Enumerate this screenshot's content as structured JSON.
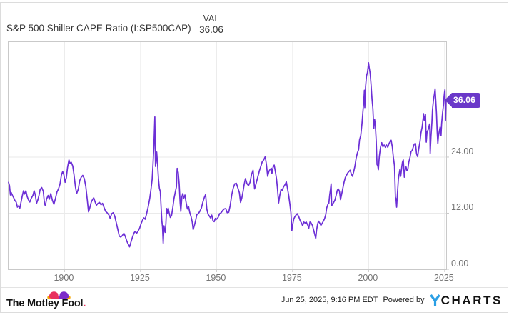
{
  "header": {
    "title": "S&P 500 Shiller CAPE Ratio (I:SP500CAP)",
    "val_label": "VAL",
    "val_value": "36.06"
  },
  "colors": {
    "line": "#6C2FD6",
    "tag_bg": "#6A38C9",
    "tag_text": "#FFFFFF",
    "grid": "#EAEAEA",
    "axis_border": "#C9C9C9",
    "tick_text": "#757575",
    "brand_pink": "#E8315E",
    "brand_purple": "#7D2BC9",
    "brand_gold": "#F7A600",
    "ycharts_blue": "#2A9FE5"
  },
  "footer": {
    "brand": "The Motley Fool",
    "brand_dot": ".",
    "timestamp": "Jun 25, 2025, 9:16 PM EDT",
    "powered_by": "Powered by",
    "provider_mark": "Y",
    "provider_name": "CHARTS"
  },
  "chart_data": {
    "type": "line",
    "title": "S&P 500 Shiller CAPE Ratio (I:SP500CAP)",
    "series_name": "S&P 500 Shiller CAPE Ratio",
    "xlabel": "",
    "ylabel": "",
    "legend": "none",
    "grid": true,
    "y_axis_side": "right",
    "x_domain": [
      1881.6,
      2025.5
    ],
    "y_domain": [
      0,
      48.6
    ],
    "x_ticks": [
      1900,
      1925,
      1950,
      1975,
      2000,
      2025
    ],
    "x_tick_labels": [
      "1900",
      "1925",
      "1950",
      "1975",
      "2000",
      "2025"
    ],
    "y_gridlines": [
      12,
      24,
      36
    ],
    "y_ticks_labeled": [
      {
        "v": 0,
        "label": "0.00"
      },
      {
        "v": 12,
        "label": "12.00"
      },
      {
        "v": 24,
        "label": "24.00"
      }
    ],
    "last_value": 36.06,
    "last_label": "36.06",
    "points": [
      [
        1881.6,
        18.6
      ],
      [
        1881.9,
        17.9
      ],
      [
        1882.2,
        15.9
      ],
      [
        1882.5,
        16.4
      ],
      [
        1882.9,
        15.8
      ],
      [
        1883.3,
        15.3
      ],
      [
        1883.7,
        14.7
      ],
      [
        1884.1,
        14.4
      ],
      [
        1884.5,
        13.3
      ],
      [
        1884.9,
        13.6
      ],
      [
        1885.3,
        13.1
      ],
      [
        1885.7,
        14.4
      ],
      [
        1886.1,
        15.7
      ],
      [
        1886.5,
        16.8
      ],
      [
        1886.9,
        16.1
      ],
      [
        1887.3,
        16.8
      ],
      [
        1887.7,
        15.6
      ],
      [
        1888.1,
        14.9
      ],
      [
        1888.6,
        14.4
      ],
      [
        1889.1,
        15.2
      ],
      [
        1889.6,
        15.8
      ],
      [
        1890.0,
        16.8
      ],
      [
        1890.4,
        15.9
      ],
      [
        1890.8,
        14.1
      ],
      [
        1891.2,
        14.8
      ],
      [
        1891.6,
        15.8
      ],
      [
        1892.0,
        17.1
      ],
      [
        1892.5,
        17.5
      ],
      [
        1893.0,
        16.7
      ],
      [
        1893.4,
        14.1
      ],
      [
        1893.7,
        13.6
      ],
      [
        1894.1,
        15.0
      ],
      [
        1894.6,
        15.8
      ],
      [
        1895.0,
        15.0
      ],
      [
        1895.5,
        16.2
      ],
      [
        1896.0,
        14.8
      ],
      [
        1896.5,
        13.9
      ],
      [
        1897.0,
        15.1
      ],
      [
        1897.5,
        16.5
      ],
      [
        1898.0,
        17.2
      ],
      [
        1898.5,
        18.2
      ],
      [
        1899.0,
        20.2
      ],
      [
        1899.4,
        20.9
      ],
      [
        1899.8,
        20.2
      ],
      [
        1900.2,
        18.6
      ],
      [
        1900.6,
        19.6
      ],
      [
        1901.0,
        21.8
      ],
      [
        1901.45,
        23.4
      ],
      [
        1901.8,
        22.6
      ],
      [
        1902.2,
        22.9
      ],
      [
        1902.7,
        22.1
      ],
      [
        1903.1,
        20.3
      ],
      [
        1903.6,
        17.6
      ],
      [
        1904.0,
        16.2
      ],
      [
        1904.5,
        17.1
      ],
      [
        1905.0,
        19.0
      ],
      [
        1905.5,
        19.7
      ],
      [
        1906.0,
        20.1
      ],
      [
        1906.5,
        19.4
      ],
      [
        1907.0,
        17.7
      ],
      [
        1907.5,
        14.8
      ],
      [
        1907.9,
        12.3
      ],
      [
        1908.3,
        13.1
      ],
      [
        1908.8,
        14.4
      ],
      [
        1909.2,
        14.9
      ],
      [
        1909.6,
        15.3
      ],
      [
        1910.0,
        14.5
      ],
      [
        1910.5,
        13.7
      ],
      [
        1911.0,
        14.1
      ],
      [
        1911.5,
        14.3
      ],
      [
        1912.0,
        13.8
      ],
      [
        1912.5,
        14.1
      ],
      [
        1913.0,
        13.2
      ],
      [
        1913.5,
        12.4
      ],
      [
        1914.0,
        12.1
      ],
      [
        1914.6,
        11.6
      ],
      [
        1915.0,
        10.9
      ],
      [
        1915.5,
        11.9
      ],
      [
        1916.0,
        12.1
      ],
      [
        1916.5,
        11.4
      ],
      [
        1917.0,
        10.0
      ],
      [
        1917.5,
        8.6
      ],
      [
        1918.0,
        7.1
      ],
      [
        1918.5,
        6.9
      ],
      [
        1919.0,
        7.2
      ],
      [
        1919.5,
        7.7
      ],
      [
        1920.0,
        7.0
      ],
      [
        1920.5,
        6.0
      ],
      [
        1921.0,
        5.3
      ],
      [
        1921.4,
        4.8
      ],
      [
        1921.8,
        5.7
      ],
      [
        1922.3,
        6.8
      ],
      [
        1922.8,
        7.7
      ],
      [
        1923.2,
        8.1
      ],
      [
        1923.7,
        7.7
      ],
      [
        1924.2,
        8.2
      ],
      [
        1924.7,
        8.8
      ],
      [
        1925.2,
        9.8
      ],
      [
        1925.7,
        10.6
      ],
      [
        1926.1,
        11.0
      ],
      [
        1926.5,
        10.7
      ],
      [
        1927.0,
        11.9
      ],
      [
        1927.5,
        13.3
      ],
      [
        1928.0,
        15.1
      ],
      [
        1928.4,
        17.0
      ],
      [
        1928.8,
        19.2
      ],
      [
        1929.1,
        22.4
      ],
      [
        1929.4,
        26.5
      ],
      [
        1929.7,
        32.6
      ],
      [
        1929.9,
        22.0
      ],
      [
        1930.1,
        22.9
      ],
      [
        1930.3,
        25.1
      ],
      [
        1930.6,
        22.6
      ],
      [
        1930.9,
        19.3
      ],
      [
        1931.2,
        17.3
      ],
      [
        1931.5,
        16.6
      ],
      [
        1931.8,
        12.9
      ],
      [
        1932.0,
        10.4
      ],
      [
        1932.2,
        9.1
      ],
      [
        1932.45,
        5.6
      ],
      [
        1932.7,
        9.3
      ],
      [
        1932.9,
        8.4
      ],
      [
        1933.1,
        7.9
      ],
      [
        1933.35,
        9.8
      ],
      [
        1933.55,
        13.0
      ],
      [
        1933.8,
        12.0
      ],
      [
        1934.1,
        13.1
      ],
      [
        1934.4,
        12.1
      ],
      [
        1934.8,
        11.1
      ],
      [
        1935.2,
        11.5
      ],
      [
        1935.6,
        13.1
      ],
      [
        1936.0,
        15.1
      ],
      [
        1936.4,
        16.4
      ],
      [
        1936.8,
        17.6
      ],
      [
        1937.05,
        21.6
      ],
      [
        1937.4,
        20.7
      ],
      [
        1937.7,
        18.3
      ],
      [
        1938.0,
        14.3
      ],
      [
        1938.25,
        12.4
      ],
      [
        1938.6,
        15.5
      ],
      [
        1938.9,
        16.2
      ],
      [
        1939.2,
        15.2
      ],
      [
        1939.6,
        15.9
      ],
      [
        1940.0,
        14.2
      ],
      [
        1940.4,
        12.9
      ],
      [
        1940.8,
        13.4
      ],
      [
        1941.2,
        12.1
      ],
      [
        1941.6,
        11.3
      ],
      [
        1942.0,
        10.1
      ],
      [
        1942.3,
        8.5
      ],
      [
        1942.7,
        9.4
      ],
      [
        1943.1,
        10.4
      ],
      [
        1943.5,
        11.7
      ],
      [
        1944.0,
        11.9
      ],
      [
        1944.5,
        12.4
      ],
      [
        1945.0,
        13.1
      ],
      [
        1945.5,
        14.4
      ],
      [
        1946.0,
        15.4
      ],
      [
        1946.4,
        16.0
      ],
      [
        1946.8,
        12.9
      ],
      [
        1947.2,
        11.8
      ],
      [
        1947.6,
        11.4
      ],
      [
        1948.0,
        11.0
      ],
      [
        1948.4,
        11.6
      ],
      [
        1948.8,
        10.4
      ],
      [
        1949.2,
        10.2
      ],
      [
        1949.6,
        10.9
      ],
      [
        1950.0,
        10.7
      ],
      [
        1950.5,
        11.1
      ],
      [
        1951.0,
        11.9
      ],
      [
        1951.5,
        12.1
      ],
      [
        1952.0,
        12.6
      ],
      [
        1952.5,
        12.9
      ],
      [
        1953.0,
        13.0
      ],
      [
        1953.5,
        12.1
      ],
      [
        1954.0,
        12.2
      ],
      [
        1954.5,
        13.7
      ],
      [
        1955.0,
        16.0
      ],
      [
        1955.5,
        17.4
      ],
      [
        1956.0,
        18.3
      ],
      [
        1956.5,
        18.4
      ],
      [
        1957.0,
        17.4
      ],
      [
        1957.5,
        16.4
      ],
      [
        1957.9,
        14.3
      ],
      [
        1958.3,
        15.2
      ],
      [
        1958.7,
        16.6
      ],
      [
        1959.1,
        18.2
      ],
      [
        1959.5,
        19.4
      ],
      [
        1960.0,
        18.3
      ],
      [
        1960.5,
        17.9
      ],
      [
        1961.0,
        18.6
      ],
      [
        1961.5,
        20.3
      ],
      [
        1962.0,
        21.2
      ],
      [
        1962.5,
        17.2
      ],
      [
        1962.9,
        18.1
      ],
      [
        1963.3,
        19.1
      ],
      [
        1963.7,
        20.1
      ],
      [
        1964.1,
        21.1
      ],
      [
        1964.5,
        21.9
      ],
      [
        1965.0,
        23.0
      ],
      [
        1965.5,
        23.4
      ],
      [
        1966.0,
        24.1
      ],
      [
        1966.4,
        22.4
      ],
      [
        1966.8,
        19.9
      ],
      [
        1967.2,
        20.9
      ],
      [
        1967.6,
        21.4
      ],
      [
        1968.0,
        21.6
      ],
      [
        1968.2,
        20.5
      ],
      [
        1968.6,
        21.9
      ],
      [
        1968.95,
        22.3
      ],
      [
        1969.3,
        21.0
      ],
      [
        1969.7,
        19.4
      ],
      [
        1970.0,
        17.4
      ],
      [
        1970.4,
        14.2
      ],
      [
        1970.8,
        15.9
      ],
      [
        1971.2,
        17.1
      ],
      [
        1971.6,
        16.9
      ],
      [
        1972.0,
        17.6
      ],
      [
        1972.5,
        18.1
      ],
      [
        1972.95,
        18.7
      ],
      [
        1973.3,
        17.4
      ],
      [
        1973.7,
        15.9
      ],
      [
        1974.1,
        14.0
      ],
      [
        1974.45,
        12.1
      ],
      [
        1974.75,
        8.3
      ],
      [
        1975.1,
        9.8
      ],
      [
        1975.4,
        10.8
      ],
      [
        1975.7,
        11.2
      ],
      [
        1976.0,
        11.5
      ],
      [
        1976.5,
        11.9
      ],
      [
        1977.0,
        11.3
      ],
      [
        1977.5,
        10.4
      ],
      [
        1978.0,
        9.8
      ],
      [
        1978.3,
        9.3
      ],
      [
        1978.7,
        10.1
      ],
      [
        1979.1,
        9.9
      ],
      [
        1979.5,
        10.1
      ],
      [
        1980.0,
        9.4
      ],
      [
        1980.3,
        8.8
      ],
      [
        1980.7,
        10.1
      ],
      [
        1981.0,
        10.0
      ],
      [
        1981.5,
        9.4
      ],
      [
        1982.0,
        8.2
      ],
      [
        1982.3,
        7.4
      ],
      [
        1982.6,
        6.6
      ],
      [
        1982.9,
        8.4
      ],
      [
        1983.2,
        9.6
      ],
      [
        1983.5,
        10.3
      ],
      [
        1983.9,
        9.9
      ],
      [
        1984.3,
        9.4
      ],
      [
        1984.7,
        9.8
      ],
      [
        1985.1,
        10.3
      ],
      [
        1985.5,
        10.8
      ],
      [
        1985.9,
        11.7
      ],
      [
        1986.2,
        13.1
      ],
      [
        1986.6,
        13.9
      ],
      [
        1986.9,
        14.1
      ],
      [
        1987.2,
        15.9
      ],
      [
        1987.45,
        17.1
      ],
      [
        1987.65,
        18.3
      ],
      [
        1987.85,
        13.6
      ],
      [
        1988.1,
        13.9
      ],
      [
        1988.5,
        14.3
      ],
      [
        1988.9,
        14.8
      ],
      [
        1989.3,
        15.8
      ],
      [
        1989.7,
        16.9
      ],
      [
        1990.0,
        17.2
      ],
      [
        1990.4,
        16.7
      ],
      [
        1990.75,
        14.9
      ],
      [
        1991.1,
        16.0
      ],
      [
        1991.5,
        17.3
      ],
      [
        1991.9,
        18.6
      ],
      [
        1992.3,
        19.6
      ],
      [
        1992.7,
        20.1
      ],
      [
        1993.1,
        20.6
      ],
      [
        1993.5,
        20.9
      ],
      [
        1993.9,
        21.2
      ],
      [
        1994.3,
        20.4
      ],
      [
        1994.7,
        19.9
      ],
      [
        1995.1,
        20.9
      ],
      [
        1995.5,
        22.1
      ],
      [
        1995.9,
        23.8
      ],
      [
        1996.3,
        24.9
      ],
      [
        1996.7,
        25.6
      ],
      [
        1997.0,
        27.7
      ],
      [
        1997.4,
        28.6
      ],
      [
        1997.8,
        31.1
      ],
      [
        1998.1,
        33.6
      ],
      [
        1998.4,
        36.1
      ],
      [
        1998.6,
        38.3
      ],
      [
        1998.75,
        34.6
      ],
      [
        1999.0,
        39.1
      ],
      [
        1999.3,
        41.4
      ],
      [
        1999.6,
        42.1
      ],
      [
        1999.8,
        43.1
      ],
      [
        1999.95,
        44.2
      ],
      [
        2000.2,
        43.1
      ],
      [
        2000.5,
        41.9
      ],
      [
        2000.8,
        39.4
      ],
      [
        2001.1,
        36.4
      ],
      [
        2001.4,
        34.4
      ],
      [
        2001.7,
        30.1
      ],
      [
        2001.95,
        32.1
      ],
      [
        2002.2,
        31.0
      ],
      [
        2002.5,
        27.4
      ],
      [
        2002.75,
        22.4
      ],
      [
        2003.0,
        22.1
      ],
      [
        2003.2,
        21.3
      ],
      [
        2003.5,
        24.1
      ],
      [
        2003.9,
        26.1
      ],
      [
        2004.3,
        27.1
      ],
      [
        2004.7,
        26.2
      ],
      [
        2005.1,
        26.6
      ],
      [
        2005.5,
        26.1
      ],
      [
        2005.9,
        26.6
      ],
      [
        2006.3,
        26.1
      ],
      [
        2006.7,
        26.9
      ],
      [
        2007.1,
        27.3
      ],
      [
        2007.4,
        27.6
      ],
      [
        2007.8,
        26.1
      ],
      [
        2008.1,
        24.1
      ],
      [
        2008.5,
        22.1
      ],
      [
        2008.8,
        15.4
      ],
      [
        2009.0,
        15.1
      ],
      [
        2009.2,
        13.3
      ],
      [
        2009.5,
        16.4
      ],
      [
        2009.8,
        19.4
      ],
      [
        2010.0,
        20.3
      ],
      [
        2010.3,
        21.4
      ],
      [
        2010.55,
        19.9
      ],
      [
        2010.9,
        21.9
      ],
      [
        2011.1,
        22.9
      ],
      [
        2011.4,
        23.4
      ],
      [
        2011.75,
        19.7
      ],
      [
        2012.0,
        21.2
      ],
      [
        2012.3,
        21.9
      ],
      [
        2012.6,
        21.1
      ],
      [
        2012.9,
        21.4
      ],
      [
        2013.2,
        22.9
      ],
      [
        2013.6,
        23.9
      ],
      [
        2013.95,
        25.2
      ],
      [
        2014.3,
        25.4
      ],
      [
        2014.7,
        26.2
      ],
      [
        2015.0,
        26.8
      ],
      [
        2015.4,
        26.9
      ],
      [
        2015.75,
        24.7
      ],
      [
        2016.1,
        24.1
      ],
      [
        2016.5,
        25.9
      ],
      [
        2016.9,
        27.4
      ],
      [
        2017.2,
        29.1
      ],
      [
        2017.6,
        30.4
      ],
      [
        2017.95,
        32.4
      ],
      [
        2018.05,
        33.3
      ],
      [
        2018.3,
        31.9
      ],
      [
        2018.7,
        33.1
      ],
      [
        2018.95,
        27.2
      ],
      [
        2019.2,
        29.4
      ],
      [
        2019.6,
        29.9
      ],
      [
        2019.95,
        30.9
      ],
      [
        2020.1,
        31.1
      ],
      [
        2020.25,
        24.8
      ],
      [
        2020.5,
        28.4
      ],
      [
        2020.8,
        31.4
      ],
      [
        2021.0,
        34.1
      ],
      [
        2021.3,
        36.1
      ],
      [
        2021.6,
        37.4
      ],
      [
        2021.85,
        38.6
      ],
      [
        2022.05,
        36.4
      ],
      [
        2022.3,
        33.4
      ],
      [
        2022.55,
        29.4
      ],
      [
        2022.75,
        26.9
      ],
      [
        2022.95,
        28.4
      ],
      [
        2023.2,
        29.4
      ],
      [
        2023.5,
        30.4
      ],
      [
        2023.8,
        28.6
      ],
      [
        2024.0,
        31.1
      ],
      [
        2024.3,
        33.4
      ],
      [
        2024.6,
        35.1
      ],
      [
        2024.8,
        36.9
      ],
      [
        2024.95,
        37.9
      ],
      [
        2025.1,
        38.4
      ],
      [
        2025.28,
        31.9
      ],
      [
        2025.45,
        36.06
      ]
    ]
  }
}
